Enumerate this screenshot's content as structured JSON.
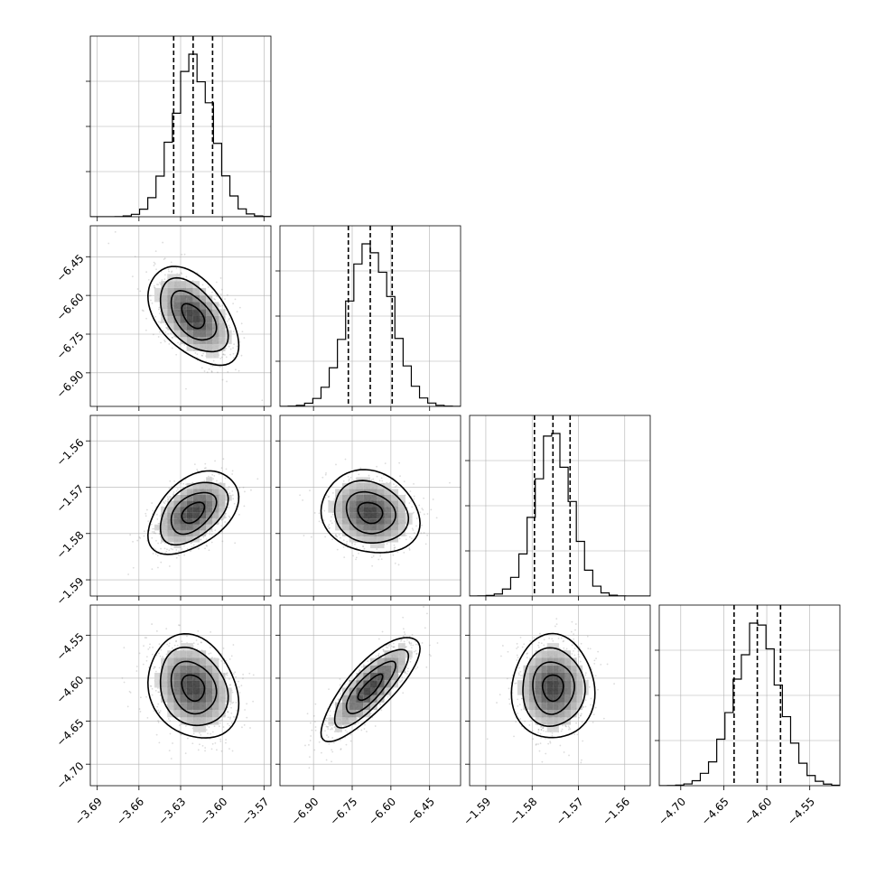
{
  "chart_data": {
    "type": "corner",
    "title": "",
    "parameters": [
      {
        "name": "",
        "median": -3.621,
        "q16": -3.635,
        "q84": -3.607,
        "sigma": 0.0145,
        "range": [
          -3.695,
          -3.565
        ],
        "ticks": [
          -3.69,
          -3.66,
          -3.63,
          -3.6,
          -3.57
        ],
        "tick_labels": [
          "−3.69",
          "−3.66",
          "−3.63",
          "−3.60",
          "−3.57"
        ]
      },
      {
        "name": "",
        "median": -6.68,
        "q16": -6.765,
        "q84": -6.595,
        "sigma": 0.085,
        "range": [
          -7.03,
          -6.33
        ],
        "ticks": [
          -6.9,
          -6.75,
          -6.6,
          -6.45
        ],
        "tick_labels": [
          "−6.90",
          "−6.75",
          "−6.60",
          "−6.45"
        ]
      },
      {
        "name": "",
        "median": -1.5755,
        "q16": -1.5795,
        "q84": -1.5718,
        "sigma": 0.004,
        "range": [
          -1.5935,
          -1.5545
        ],
        "ticks": [
          -1.59,
          -1.58,
          -1.57,
          -1.56
        ],
        "tick_labels": [
          "−1.59",
          "−1.58",
          "−1.57",
          "−1.56"
        ]
      },
      {
        "name": "",
        "median": -4.611,
        "q16": -4.638,
        "q84": -4.584,
        "sigma": 0.027,
        "range": [
          -4.725,
          -4.515
        ],
        "ticks": [
          -4.7,
          -4.65,
          -4.6,
          -4.55
        ],
        "tick_labels": [
          "−4.70",
          "−4.65",
          "−4.60",
          "−4.55"
        ]
      }
    ],
    "correlations": [
      {
        "i": 1,
        "j": 0,
        "rho": -0.5
      },
      {
        "i": 2,
        "j": 0,
        "rho": 0.45
      },
      {
        "i": 2,
        "j": 1,
        "rho": -0.15
      },
      {
        "i": 3,
        "j": 0,
        "rho": -0.2
      },
      {
        "i": 3,
        "j": 1,
        "rho": 0.8
      },
      {
        "i": 3,
        "j": 2,
        "rho": 0.0
      }
    ],
    "quantiles": [
      0.16,
      0.5,
      0.84
    ],
    "grid": true,
    "colors": {
      "line": "#000000",
      "scatter": "#808080",
      "grid": "#b0b0b0",
      "background": "#ffffff"
    }
  }
}
